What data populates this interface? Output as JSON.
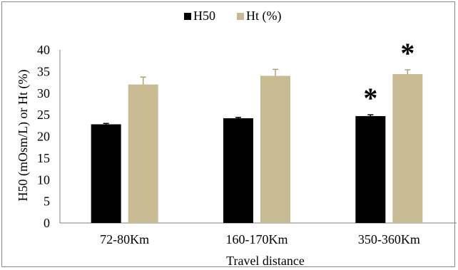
{
  "chart_data": {
    "type": "bar",
    "categories": [
      "72-80Km",
      "160-170Km",
      "350-360Km"
    ],
    "series": [
      {
        "name": "H50",
        "values": [
          22.8,
          24.2,
          24.7
        ],
        "errors": [
          0.2,
          0.2,
          0.3
        ],
        "color": "#000000"
      },
      {
        "name": "Ht (%)",
        "values": [
          32.0,
          34.0,
          34.4
        ],
        "errors": [
          1.7,
          1.5,
          1.0
        ],
        "color": "#c8bb94"
      }
    ],
    "xlabel": "Travel distance",
    "ylabel": "H50 (mOsm/L) or Ht (%)",
    "ylim": [
      0,
      40
    ],
    "yticks": [
      0,
      5,
      10,
      15,
      20,
      25,
      30,
      35,
      40
    ],
    "grid": false,
    "legend_position": "top-center",
    "significance_marker": "*",
    "significance": [
      {
        "category": "350-360Km",
        "series": "H50"
      },
      {
        "category": "350-360Km",
        "series": "Ht (%)"
      }
    ]
  }
}
